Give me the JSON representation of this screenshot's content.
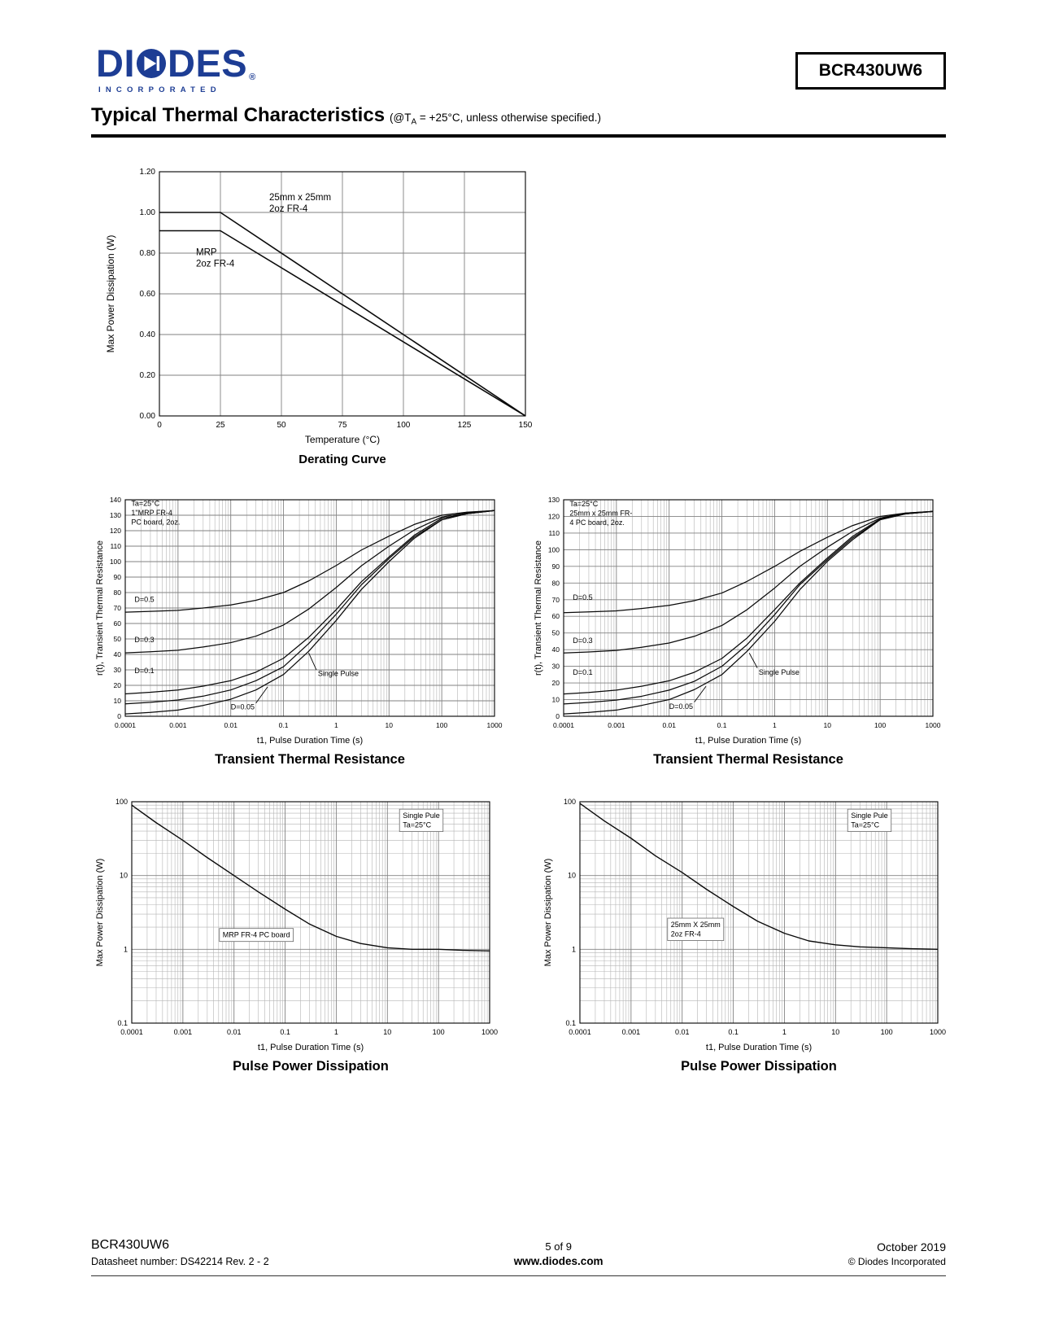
{
  "page": {
    "header": {
      "logo": {
        "brand_pre": "DI",
        "brand_post": "DES",
        "registered": "®",
        "subtext": "INCORPORATED"
      },
      "part_number": "BCR430UW6"
    },
    "title": {
      "main": "Typical Thermal Characteristics",
      "cond_pre": "(@T",
      "cond_sub": "A",
      "cond_post": " = +25°C, unless otherwise specified.)"
    },
    "footer": {
      "part": "BCR430UW6",
      "datasheet": "Datasheet number: DS42214  Rev. 2 - 2",
      "page_num": "5 of 9",
      "site": "www.diodes.com",
      "date": "October 2019",
      "copyright": "© Diodes Incorporated"
    }
  },
  "chart_data": [
    {
      "id": "derating",
      "type": "line",
      "caption": "Derating Curve",
      "x": {
        "scale": "linear",
        "min": 0,
        "max": 150,
        "ticks": [
          0,
          25,
          50,
          75,
          100,
          125,
          150
        ],
        "tick_labels": [
          "0",
          "25",
          "50",
          "75",
          "100",
          "125",
          "150"
        ],
        "title": "Temperature  (°C)"
      },
      "y": {
        "scale": "linear",
        "min": 0,
        "max": 1.2,
        "ticks": [
          0,
          0.2,
          0.4,
          0.6,
          0.8,
          1.0,
          1.2
        ],
        "tick_labels": [
          "0.00",
          "0.20",
          "0.40",
          "0.60",
          "0.80",
          "1.00",
          "1.20"
        ],
        "title": "Max  Power  Dissipation  (W)"
      },
      "series": [
        {
          "name": "25mm x 25mm 2oz FR-4",
          "points": [
            [
              0,
              1.0
            ],
            [
              25,
              1.0
            ],
            [
              150,
              0
            ]
          ]
        },
        {
          "name": "MRP 2oz FR-4",
          "points": [
            [
              0,
              0.91
            ],
            [
              25,
              0.91
            ],
            [
              150,
              0
            ]
          ]
        }
      ],
      "annotations": [
        {
          "lines": [
            "25mm x 25mm",
            "2oz FR-4"
          ],
          "x": 45,
          "y": 1.06
        },
        {
          "lines": [
            "MRP",
            "2oz FR-4"
          ],
          "x": 15,
          "y": 0.79
        }
      ]
    },
    {
      "id": "ttr_mrp",
      "type": "line",
      "caption": "Transient Thermal Resistance",
      "x": {
        "scale": "log",
        "min": 0.0001,
        "max": 1000,
        "tick_labels": [
          "0.0001",
          "0.001",
          "0.01",
          "0.1",
          "1",
          "10",
          "100",
          "1000"
        ],
        "title": "t1, Pulse Duration Time (s)"
      },
      "y": {
        "scale": "linear",
        "min": 0,
        "max": 140,
        "ticks": [
          0,
          10,
          20,
          30,
          40,
          50,
          60,
          70,
          80,
          90,
          100,
          110,
          120,
          130,
          140
        ],
        "title": "r(t), Transient Thermal Resistance"
      },
      "x_values": [
        0.0001,
        0.0003,
        0.001,
        0.003,
        0.01,
        0.03,
        0.1,
        0.3,
        1,
        3,
        10,
        30,
        100,
        300,
        1000
      ],
      "series": [
        {
          "name": "D=0.5",
          "values": [
            67.3,
            67.8,
            68.5,
            70,
            72,
            75,
            80,
            87.5,
            97.5,
            107.5,
            116.5,
            124,
            130,
            132,
            133
          ]
        },
        {
          "name": "D=0.3",
          "values": [
            41,
            41.7,
            42.7,
            44.8,
            47.6,
            51.8,
            59,
            69.3,
            83.3,
            97.3,
            110,
            120.4,
            128.8,
            131.6,
            133
          ]
        },
        {
          "name": "D=0.1",
          "values": [
            14.5,
            15.5,
            17,
            19.5,
            23,
            28.5,
            37.5,
            51,
            69,
            87,
            103,
            117,
            128,
            131,
            133
          ]
        },
        {
          "name": "D=0.05",
          "values": [
            8,
            9,
            10.5,
            13,
            17,
            23,
            32,
            47,
            66,
            85,
            102,
            116,
            127,
            131,
            133
          ]
        },
        {
          "name": "Single Pulse",
          "values": [
            1.5,
            2.5,
            4,
            7,
            11,
            17,
            27,
            42,
            62,
            82,
            100,
            115,
            127,
            131,
            133
          ]
        }
      ],
      "annotations": [
        {
          "lines": [
            "Ta=25°C",
            "1\"MRP FR-4",
            "PC board, 2oz."
          ],
          "x": 0.00013,
          "y": 136
        },
        {
          "lines": [
            "D=0.5"
          ],
          "x": 0.00015,
          "y": 74
        },
        {
          "lines": [
            "D=0.3"
          ],
          "x": 0.00015,
          "y": 48
        },
        {
          "lines": [
            "D=0.1"
          ],
          "x": 0.00015,
          "y": 28
        },
        {
          "lines": [
            "D=0.05"
          ],
          "x": 0.01,
          "y": 4.5,
          "leader": [
            0.03,
            8.5,
            0.05,
            19
          ]
        },
        {
          "lines": [
            "Single Pulse"
          ],
          "x": 0.45,
          "y": 26,
          "leader": [
            0.42,
            30,
            0.3,
            41
          ]
        }
      ]
    },
    {
      "id": "ttr_25mm",
      "type": "line",
      "caption": "Transient Thermal Resistance",
      "x": {
        "scale": "log",
        "min": 0.0001,
        "max": 1000,
        "tick_labels": [
          "0.0001",
          "0.001",
          "0.01",
          "0.1",
          "1",
          "10",
          "100",
          "1000"
        ],
        "title": "t1, Pulse  Duration  Time  (s)"
      },
      "y": {
        "scale": "linear",
        "min": 0,
        "max": 130,
        "ticks": [
          0,
          10,
          20,
          30,
          40,
          50,
          60,
          70,
          80,
          90,
          100,
          110,
          120,
          130
        ],
        "title": "r(t), Transient  Thermal  Resistance"
      },
      "x_values": [
        0.0001,
        0.0003,
        0.001,
        0.003,
        0.01,
        0.03,
        0.1,
        0.3,
        1,
        3,
        10,
        30,
        100,
        300,
        1000
      ],
      "series": [
        {
          "name": "D=0.5",
          "values": [
            62.2,
            62.7,
            63.3,
            64.7,
            66.6,
            69.4,
            74,
            81,
            90,
            99,
            107.5,
            114.5,
            120,
            122,
            123
          ]
        },
        {
          "name": "D=0.3",
          "values": [
            38,
            38.6,
            39.5,
            41.4,
            44,
            48,
            54.5,
            64,
            77,
            90,
            101.5,
            111,
            119,
            122,
            123
          ]
        },
        {
          "name": "D=0.1",
          "values": [
            13.4,
            14.3,
            15.7,
            18,
            21.3,
            26.4,
            34.7,
            47,
            64,
            80,
            95,
            108,
            118.5,
            121.5,
            123
          ]
        },
        {
          "name": "D=0.05",
          "values": [
            7.4,
            8.3,
            9.7,
            12,
            15.7,
            21,
            30,
            43,
            61,
            79,
            94,
            107,
            118,
            121.5,
            123
          ]
        },
        {
          "name": "Single Pulse",
          "values": [
            1.4,
            2.3,
            3.7,
            6.5,
            10,
            16,
            25,
            39,
            57,
            76,
            93,
            106,
            118,
            121.5,
            123
          ]
        }
      ],
      "annotations": [
        {
          "lines": [
            "Ta=25°C",
            "25mm x 25mm FR-",
            "4 PC board, 2oz."
          ],
          "x": 0.00013,
          "y": 126
        },
        {
          "lines": [
            "D=0.5"
          ],
          "x": 0.00015,
          "y": 70
        },
        {
          "lines": [
            "D=0.3"
          ],
          "x": 0.00015,
          "y": 44
        },
        {
          "lines": [
            "D=0.1"
          ],
          "x": 0.00015,
          "y": 25
        },
        {
          "lines": [
            "D=0.05"
          ],
          "x": 0.01,
          "y": 4.5,
          "leader": [
            0.03,
            8.5,
            0.05,
            18
          ]
        },
        {
          "lines": [
            "Single Pulse"
          ],
          "x": 0.5,
          "y": 25,
          "leader": [
            0.47,
            29,
            0.33,
            38
          ]
        }
      ]
    },
    {
      "id": "ppd_mrp",
      "type": "line",
      "caption": "Pulse Power Dissipation",
      "x": {
        "scale": "log",
        "min": 0.0001,
        "max": 1000,
        "tick_labels": [
          "0.0001",
          "0.001",
          "0.01",
          "0.1",
          "1",
          "10",
          "100",
          "1000"
        ],
        "title": "t1, Pulse Duration Time (s)"
      },
      "y": {
        "scale": "log",
        "min": 0.1,
        "max": 100,
        "tick_labels": [
          "0.1",
          "1",
          "10",
          "100"
        ],
        "title": "Max Power Dissipation (W)"
      },
      "x_values": [
        0.0001,
        0.0003,
        0.001,
        0.003,
        0.01,
        0.03,
        0.1,
        0.3,
        1,
        3,
        10,
        30,
        100,
        300,
        1000
      ],
      "series": [
        {
          "name": "MRP FR-4 PC board",
          "values": [
            90,
            52,
            30,
            17.5,
            10,
            6,
            3.5,
            2.2,
            1.5,
            1.2,
            1.05,
            1.0,
            1.0,
            0.97,
            0.95
          ]
        }
      ],
      "annotations": [
        {
          "lines": [
            "Single Pule",
            "Ta=25°C"
          ],
          "x": 20,
          "y": 60,
          "boxed": true
        },
        {
          "lines": [
            "MRP FR-4 PC board"
          ],
          "x": 0.006,
          "y": 1.45,
          "boxed": true
        }
      ]
    },
    {
      "id": "ppd_25mm",
      "type": "line",
      "caption": "Pulse Power Dissipation",
      "x": {
        "scale": "log",
        "min": 0.0001,
        "max": 1000,
        "tick_labels": [
          "0.0001",
          "0.001",
          "0.01",
          "0.1",
          "1",
          "10",
          "100",
          "1000"
        ],
        "title": "t1, Pulse  Duration  Time  (s)"
      },
      "y": {
        "scale": "log",
        "min": 0.1,
        "max": 100,
        "tick_labels": [
          "0.1",
          "1",
          "10",
          "100"
        ],
        "title": "Max Power  Dissipation  (W)"
      },
      "x_values": [
        0.0001,
        0.0003,
        0.001,
        0.003,
        0.01,
        0.03,
        0.1,
        0.3,
        1,
        3,
        10,
        30,
        100,
        300,
        1000
      ],
      "series": [
        {
          "name": "25mm X 25mm 2oz FR-4",
          "values": [
            95,
            55,
            32,
            18.5,
            11,
            6.5,
            3.8,
            2.4,
            1.65,
            1.3,
            1.15,
            1.08,
            1.05,
            1.02,
            1.0
          ]
        }
      ],
      "annotations": [
        {
          "lines": [
            "Single Pule",
            "Ta=25°C"
          ],
          "x": 20,
          "y": 60,
          "boxed": true
        },
        {
          "lines": [
            "25mm X 25mm",
            "2oz FR-4"
          ],
          "x": 0.006,
          "y": 2.0,
          "boxed": true
        }
      ]
    }
  ]
}
